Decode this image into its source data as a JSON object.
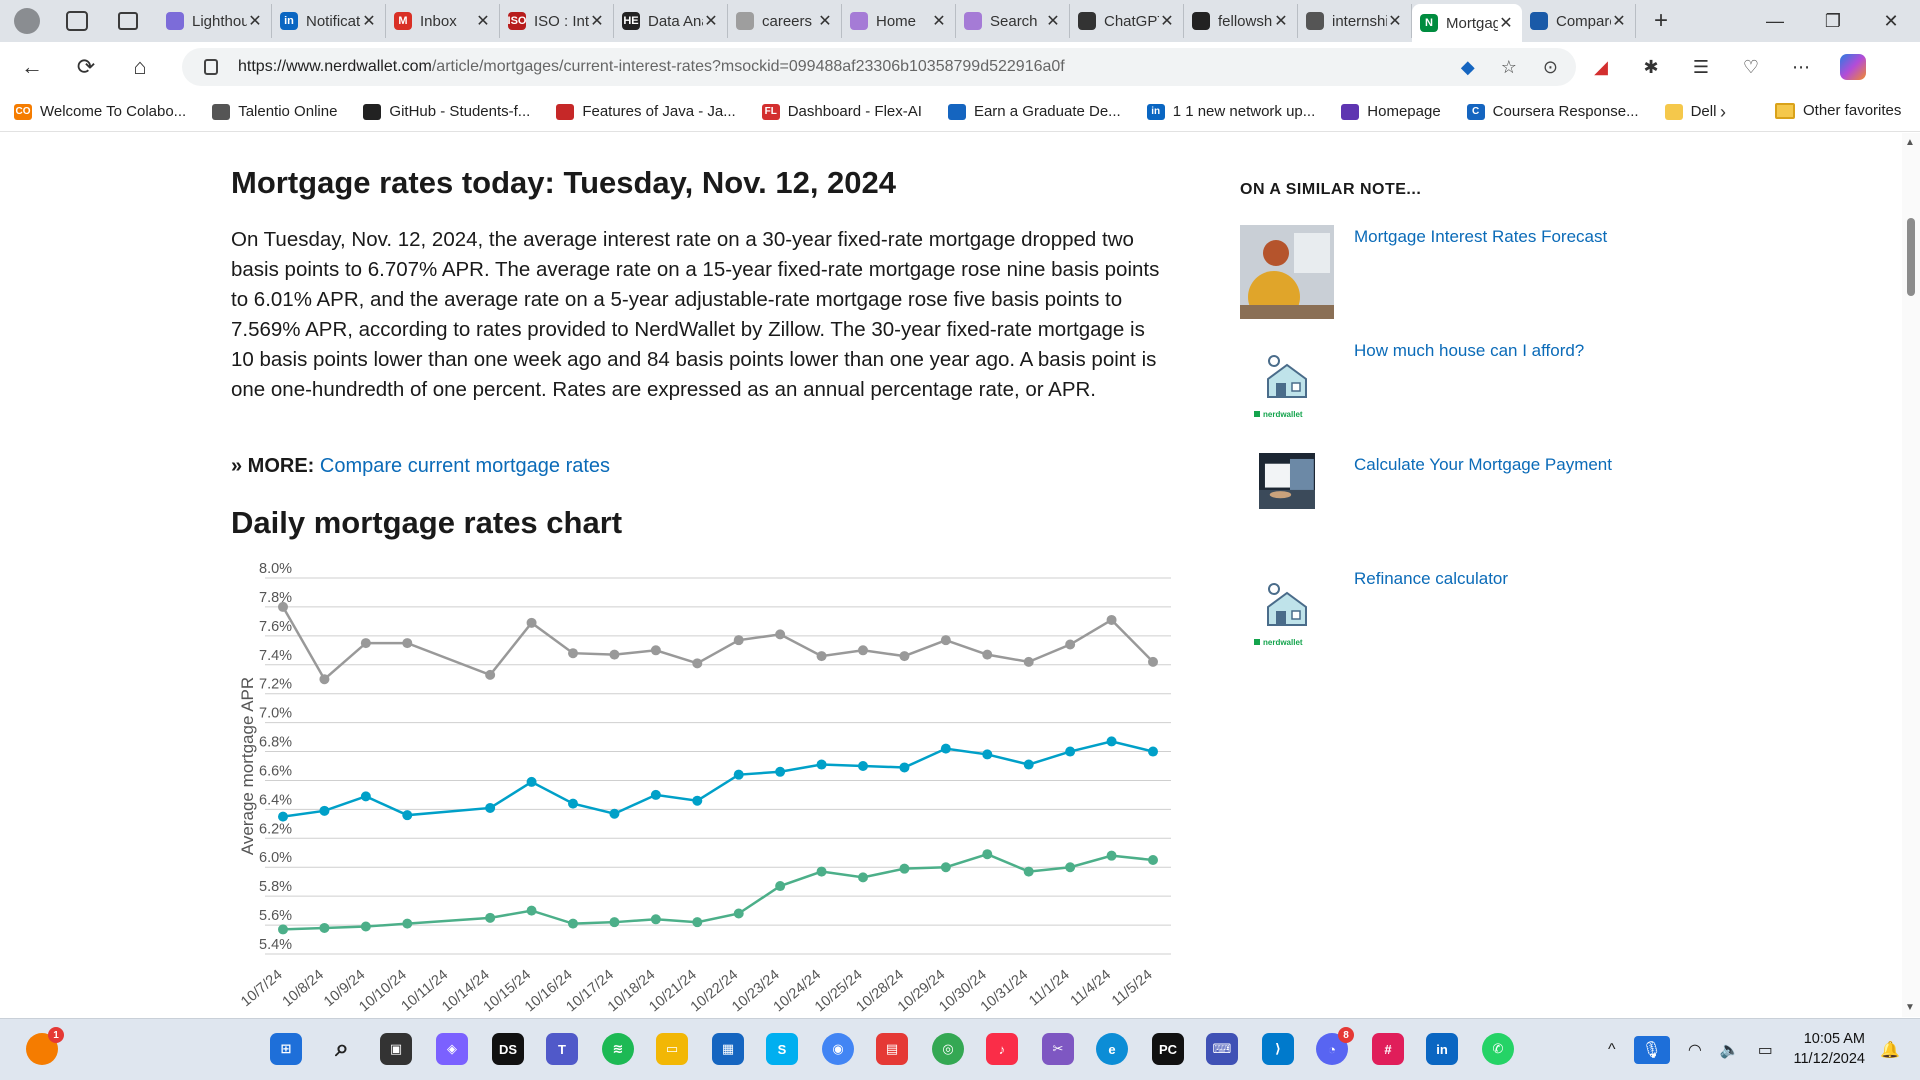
{
  "browser": {
    "tabs": [
      {
        "title": "Lighthouse",
        "color": "#7c6cd9"
      },
      {
        "title": "Notifications",
        "color": "#0a66c2",
        "glyph": "in"
      },
      {
        "title": "Inbox",
        "color": "#d93025",
        "glyph": "M"
      },
      {
        "title": "ISO : Internship",
        "color": "#b71c1c",
        "glyph": "ISO"
      },
      {
        "title": "Data Analyst",
        "color": "#222222",
        "glyph": "HE"
      },
      {
        "title": "careers",
        "color": "#9e9e9e"
      },
      {
        "title": "Home",
        "color": "#a57bd6"
      },
      {
        "title": "Search",
        "color": "#a57bd6"
      },
      {
        "title": "ChatGPT",
        "color": "#333333"
      },
      {
        "title": "fellowship",
        "color": "#222222"
      },
      {
        "title": "internship",
        "color": "#555555"
      },
      {
        "title": "Mortgage",
        "color": "#008c3f",
        "glyph": "N",
        "active": true
      },
      {
        "title": "Compare",
        "color": "#1a5aa8"
      }
    ],
    "url_domain": "https://www.nerdwallet.com",
    "url_path": "/article/mortgages/current-interest-rates?msockid=099488af23306b10358799d522916a0f",
    "bookmarks": [
      {
        "label": "Welcome To Colabo...",
        "color": "#f57c00",
        "glyph": "CO"
      },
      {
        "label": "Talentio Online",
        "color": "#555555"
      },
      {
        "label": "GitHub - Students-f...",
        "color": "#222222"
      },
      {
        "label": "Features of Java - Ja...",
        "color": "#c62828"
      },
      {
        "label": "Dashboard - Flex-AI",
        "color": "#d32f2f",
        "glyph": "FL"
      },
      {
        "label": "Earn a Graduate De...",
        "color": "#1565c0"
      },
      {
        "label": "1 1 new network up...",
        "color": "#0a66c2",
        "glyph": "in"
      },
      {
        "label": "Homepage",
        "color": "#5e35b1"
      },
      {
        "label": "Coursera Response...",
        "color": "#1565c0",
        "glyph": "C"
      },
      {
        "label": "Dell",
        "color": "#f5c84b"
      }
    ],
    "other_favorites": "Other favorites"
  },
  "article": {
    "title": "Mortgage rates today: Tuesday, Nov. 12, 2024",
    "intro": "On Tuesday, Nov. 12, 2024, the average interest rate on a 30-year fixed-rate mortgage dropped two basis points to 6.707% APR. The average rate on a 15-year fixed-rate mortgage rose nine basis points to 6.01% APR, and the average rate on a 5-year adjustable-rate mortgage rose five basis points to 7.569% APR, according to rates provided to NerdWallet by Zillow. The 30-year fixed-rate mortgage is 10 basis points lower than one week ago and 84 basis points lower than one year ago. A basis point is one one-hundredth of one percent. Rates are expressed as an annual percentage rate, or APR.",
    "more_label": "» MORE:",
    "more_link": "Compare current mortgage rates",
    "chart_heading": "Daily mortgage rates chart"
  },
  "chart_data": {
    "type": "line",
    "ylabel": "Average mortgage APR",
    "ylim": [
      5.4,
      8.0
    ],
    "yticks": [
      "8.0%",
      "7.8%",
      "7.6%",
      "7.4%",
      "7.2%",
      "7.0%",
      "6.8%",
      "6.6%",
      "6.4%",
      "6.2%",
      "6.0%",
      "5.8%",
      "5.6%",
      "5.4%"
    ],
    "ytick_values": [
      8.0,
      7.8,
      7.6,
      7.4,
      7.2,
      7.0,
      6.8,
      6.6,
      6.4,
      6.2,
      6.0,
      5.8,
      5.6,
      5.4
    ],
    "grid": true,
    "categories": [
      "10/7/24",
      "10/8/24",
      "10/9/24",
      "10/10/24",
      "10/11/24",
      "10/14/24",
      "10/15/24",
      "10/16/24",
      "10/17/24",
      "10/18/24",
      "10/21/24",
      "10/22/24",
      "10/23/24",
      "10/24/24",
      "10/25/24",
      "10/28/24",
      "10/29/24",
      "10/30/24",
      "10/31/24",
      "11/1/24",
      "11/4/24",
      "11/5/24"
    ],
    "series": [
      {
        "color": "#999999",
        "values": [
          7.8,
          7.3,
          7.55,
          7.55,
          null,
          7.33,
          7.69,
          7.48,
          7.47,
          7.5,
          7.41,
          7.57,
          7.61,
          7.46,
          7.5,
          7.46,
          7.57,
          7.47,
          7.42,
          7.54,
          7.71,
          7.42
        ]
      },
      {
        "color": "#00a0c8",
        "values": [
          6.35,
          6.39,
          6.49,
          6.36,
          null,
          6.41,
          6.59,
          6.44,
          6.37,
          6.5,
          6.46,
          6.64,
          6.66,
          6.71,
          6.7,
          6.69,
          6.82,
          6.78,
          6.71,
          6.8,
          6.87,
          6.8
        ]
      },
      {
        "color": "#4caf89",
        "values": [
          5.57,
          5.58,
          5.59,
          5.61,
          null,
          5.65,
          5.7,
          5.61,
          5.62,
          5.64,
          5.62,
          5.68,
          5.87,
          5.97,
          5.93,
          5.99,
          6.0,
          6.09,
          5.97,
          6.0,
          6.08,
          6.05
        ]
      }
    ]
  },
  "sidebar": {
    "heading": "ON A SIMILAR NOTE...",
    "items": [
      {
        "label": "Mortgage Interest Rates Forecast",
        "thumb": "photo-woman"
      },
      {
        "label": "How much house can I afford?",
        "thumb": "nerdwallet-house"
      },
      {
        "label": "Calculate Your Mortgage Payment",
        "thumb": "photo-laptop"
      },
      {
        "label": "Refinance calculator",
        "thumb": "nerdwallet-house"
      }
    ],
    "nerdwallet_caption": "nerdwallet"
  },
  "taskbar": {
    "time": "10:05 AM",
    "date": "11/12/2024",
    "badges": {
      "notify": "1",
      "discord": "8"
    }
  }
}
